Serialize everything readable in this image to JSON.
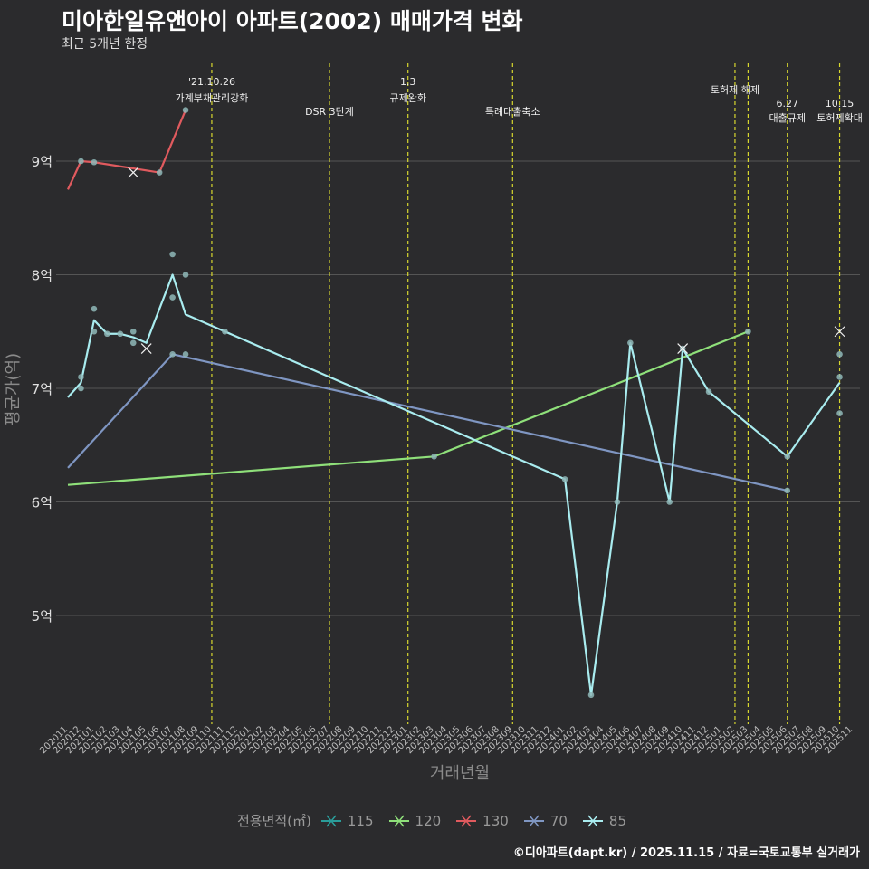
{
  "title": "미아한일유앤아이 아파트(2002) 매매가격 변화",
  "subtitle": "최근 5개년 한정",
  "footer": "©디아파트(dapt.kr) / 2025.11.15 / 자료=국토교통부 실거래가",
  "colors": {
    "background": "#2b2b2d",
    "grid": "#555555",
    "event": "#d7d72e",
    "115": "#2a9d9a",
    "120": "#8fe07a",
    "130": "#e05a5e",
    "70": "#7f96c2",
    "85": "#a9ecef"
  },
  "chart_data": {
    "type": "line",
    "title": "미아한일유앤아이 아파트(2002) 매매가격 변화",
    "xlabel": "거래년월",
    "ylabel": "평균가(억)",
    "ylim": [
      4.1,
      9.9
    ],
    "yticks": [
      5,
      6,
      7,
      8,
      9
    ],
    "ytick_labels": [
      "5억",
      "6억",
      "7억",
      "8억",
      "9억"
    ],
    "categories": [
      "202011",
      "202012",
      "202101",
      "202102",
      "202103",
      "202104",
      "202105",
      "202106",
      "202107",
      "202108",
      "202109",
      "202110",
      "202111",
      "202112",
      "202201",
      "202202",
      "202203",
      "202204",
      "202205",
      "202206",
      "202207",
      "202208",
      "202209",
      "202210",
      "202211",
      "202212",
      "202301",
      "202302",
      "202303",
      "202304",
      "202305",
      "202306",
      "202307",
      "202308",
      "202309",
      "202310",
      "202311",
      "202312",
      "202401",
      "202402",
      "202403",
      "202404",
      "202405",
      "202406",
      "202407",
      "202408",
      "202409",
      "202410",
      "202411",
      "202412",
      "202501",
      "202502",
      "202503",
      "202504",
      "202505",
      "202506",
      "202507",
      "202508",
      "202509",
      "202510",
      "202511"
    ],
    "legend_title": "전용면적(㎡)",
    "legend": [
      "115",
      "120",
      "130",
      "70",
      "85"
    ],
    "events": [
      {
        "month": "202110",
        "label1": "'21.10.26",
        "label2": "가계부채관리강화"
      },
      {
        "month": "202207",
        "label1": "",
        "label2": "DSR 3단계"
      },
      {
        "month": "202301",
        "label1": "1.3",
        "label2": "규제완화"
      },
      {
        "month": "202309",
        "label1": "",
        "label2": "특례대출축소"
      },
      {
        "month": "202502",
        "label1": "",
        "label2": "토허제 해제"
      },
      {
        "month": "202503",
        "label1": "",
        "label2": ""
      },
      {
        "month": "202506",
        "label1": "6.27",
        "label2": "대출규제"
      },
      {
        "month": "202510",
        "label1": "10.15",
        "label2": "토허제확대"
      }
    ],
    "series": [
      {
        "name": "120",
        "line": [
          [
            "202011",
            6.15
          ],
          [
            "202303",
            6.4
          ],
          [
            "202503",
            7.5
          ]
        ],
        "points": [
          [
            "202303",
            6.4
          ],
          [
            "202503",
            7.5
          ]
        ],
        "crosses": []
      },
      {
        "name": "130",
        "line": [
          [
            "202011",
            8.75
          ],
          [
            "202012",
            9.0
          ],
          [
            "202101",
            8.99
          ],
          [
            "202106",
            8.9
          ],
          [
            "202108",
            9.45
          ]
        ],
        "points": [
          [
            "202012",
            9.0
          ],
          [
            "202101",
            8.99
          ],
          [
            "202106",
            8.9
          ],
          [
            "202108",
            9.45
          ]
        ],
        "crosses": [
          [
            "202104",
            8.9
          ]
        ]
      },
      {
        "name": "70",
        "line": [
          [
            "202011",
            6.3
          ],
          [
            "202107",
            7.3
          ],
          [
            "202506",
            6.1
          ]
        ],
        "points": [
          [
            "202107",
            7.3
          ],
          [
            "202108",
            7.3
          ],
          [
            "202506",
            6.1
          ]
        ],
        "crosses": []
      },
      {
        "name": "85",
        "line": [
          [
            "202011",
            6.92
          ],
          [
            "202012",
            7.05
          ],
          [
            "202101",
            7.6
          ],
          [
            "202102",
            7.48
          ],
          [
            "202103",
            7.48
          ],
          [
            "202104",
            7.45
          ],
          [
            "202105",
            7.4
          ],
          [
            "202107",
            8.0
          ],
          [
            "202108",
            7.65
          ],
          [
            "202111",
            7.5
          ],
          [
            "202401",
            6.2
          ],
          [
            "202403",
            4.3
          ],
          [
            "202405",
            6.0
          ],
          [
            "202406",
            7.4
          ],
          [
            "202409",
            6.0
          ],
          [
            "202410",
            7.35
          ],
          [
            "202412",
            6.97
          ],
          [
            "202506",
            6.4
          ],
          [
            "202510",
            7.05
          ]
        ],
        "points": [
          [
            "202012",
            7.1
          ],
          [
            "202012",
            7.0
          ],
          [
            "202101",
            7.7
          ],
          [
            "202101",
            7.5
          ],
          [
            "202102",
            7.48
          ],
          [
            "202103",
            7.48
          ],
          [
            "202104",
            7.5
          ],
          [
            "202104",
            7.4
          ],
          [
            "202107",
            8.18
          ],
          [
            "202107",
            7.8
          ],
          [
            "202108",
            8.0
          ],
          [
            "202111",
            7.5
          ],
          [
            "202401",
            6.2
          ],
          [
            "202403",
            4.3
          ],
          [
            "202405",
            6.0
          ],
          [
            "202406",
            7.4
          ],
          [
            "202409",
            6.0
          ],
          [
            "202410",
            7.35
          ],
          [
            "202412",
            6.97
          ],
          [
            "202506",
            6.4
          ],
          [
            "202510",
            7.3
          ],
          [
            "202510",
            7.1
          ],
          [
            "202510",
            6.78
          ]
        ],
        "crosses": [
          [
            "202105",
            7.35
          ],
          [
            "202410",
            7.35
          ],
          [
            "202510",
            7.5
          ]
        ]
      }
    ]
  }
}
